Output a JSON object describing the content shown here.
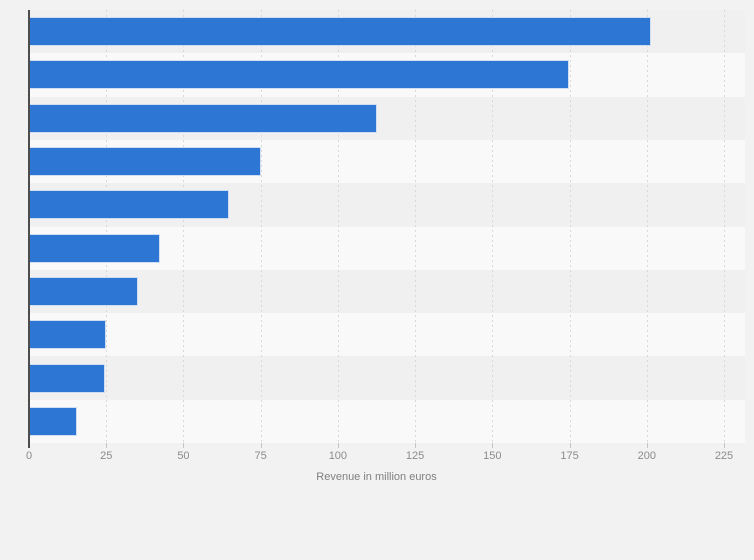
{
  "chart_data": {
    "type": "bar",
    "orientation": "horizontal",
    "title": "",
    "xlabel": "Revenue in million euros",
    "ylabel": "",
    "category_labels_visible": false,
    "values": [
      201.5,
      174.7,
      112.5,
      75,
      64.8,
      42.5,
      35.2,
      25,
      24.7,
      15.5
    ],
    "unit": "million euros",
    "xlim": [
      0,
      225
    ],
    "x_ticks": [
      "0",
      "25",
      "50",
      "75",
      "100",
      "125",
      "150",
      "175",
      "200",
      "225"
    ],
    "grid": "vertical dotted gridlines",
    "legend": "none",
    "colors": {
      "bar": "#2e76d3",
      "bar_edge": "#cfdef3",
      "page_background": "#f2f2f3",
      "stripe_odd": "#f0f0f1",
      "stripe_even": "#f9f9fa",
      "gridline": "#d8d8d9",
      "axis_line": "#4d4d4d",
      "tick_mark": "#c4c4c4",
      "tick_label": "#8b8b8b",
      "axis_title": "#808080"
    }
  }
}
